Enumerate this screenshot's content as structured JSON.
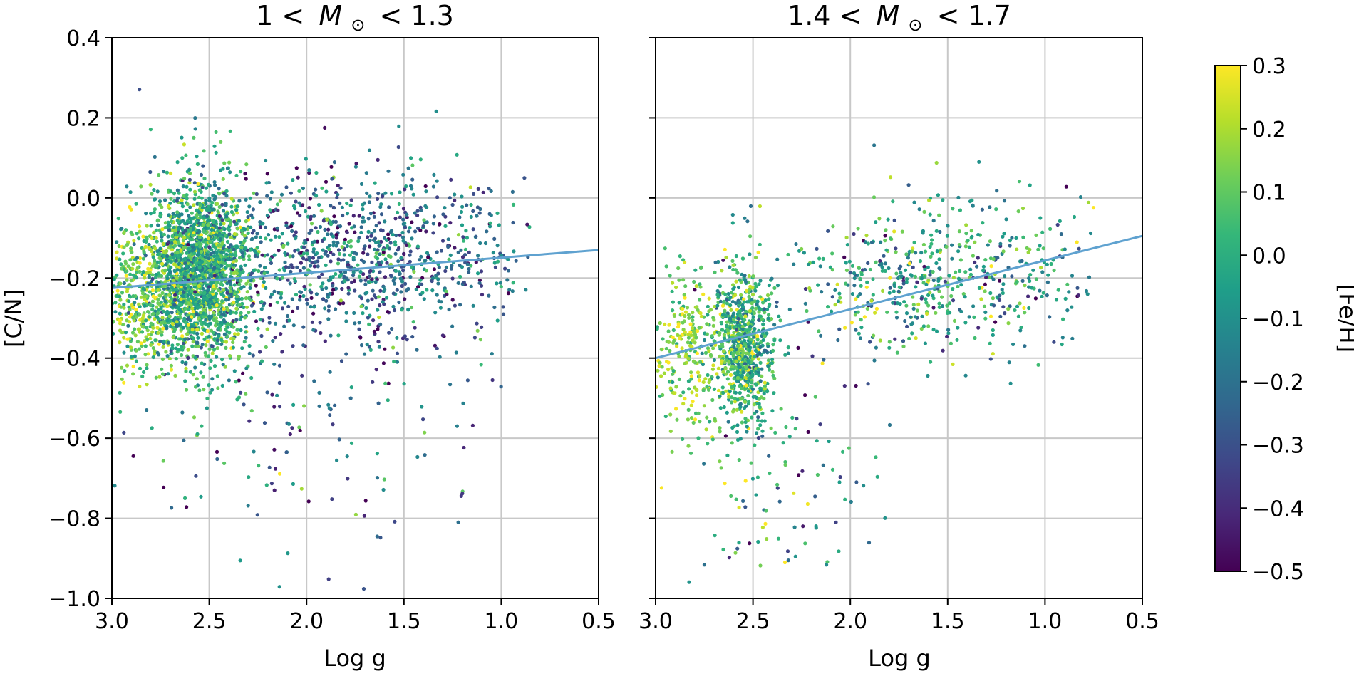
{
  "chart_data": [
    {
      "type": "scatter",
      "title": "1 < M⊙ < 1.3",
      "title_parts": {
        "left": "1 <",
        "var": "M",
        "sub": "⊙",
        "right": "< 1.3"
      },
      "xlabel": "Log g",
      "ylabel": "[C/N]",
      "xlim": [
        3.0,
        0.5
      ],
      "ylim": [
        -1.0,
        0.4
      ],
      "x_ticks": [
        "3.0",
        "2.5",
        "2.0",
        "1.5",
        "1.0",
        "0.5"
      ],
      "y_ticks": [
        "0.4",
        "0.2",
        "0.0",
        "−0.2",
        "−0.4",
        "−0.6",
        "−0.8",
        "−1.0"
      ],
      "grid": true,
      "fit_line": {
        "x": [
          3.0,
          0.5
        ],
        "y": [
          -0.225,
          -0.13
        ],
        "color": "#5fa2d0"
      },
      "points": {
        "count": 3600,
        "seed": 11,
        "clusters": [
          {
            "x_mean": 2.55,
            "x_sd": 0.13,
            "y_mean": -0.19,
            "y_sd": 0.11,
            "weight": 0.55,
            "fe_mean": 0.0,
            "fe_sd": 0.14
          },
          {
            "x_mean": 2.85,
            "x_sd": 0.12,
            "y_mean": -0.26,
            "y_sd": 0.09,
            "weight": 0.12,
            "fe_mean": 0.12,
            "fe_sd": 0.12
          },
          {
            "x_mean": 1.75,
            "x_sd": 0.45,
            "y_mean": -0.14,
            "y_sd": 0.11,
            "weight": 0.28,
            "fe_mean": -0.2,
            "fe_sd": 0.17
          },
          {
            "x_mean": 2.0,
            "x_sd": 0.5,
            "y_mean": -0.5,
            "y_sd": 0.22,
            "weight": 0.05,
            "fe_mean": -0.25,
            "fe_sd": 0.2
          }
        ],
        "x_range": [
          3.0,
          0.85
        ],
        "y_range": [
          -0.98,
          0.32
        ]
      }
    },
    {
      "type": "scatter",
      "title": "1.4 < M⊙ < 1.7",
      "title_parts": {
        "left": "1.4 <",
        "var": "M",
        "sub": "⊙",
        "right": "< 1.7"
      },
      "xlabel": "Log g",
      "ylabel": "",
      "xlim": [
        3.0,
        0.5
      ],
      "ylim": [
        -1.0,
        0.4
      ],
      "x_ticks": [
        "3.0",
        "2.5",
        "2.0",
        "1.5",
        "1.0",
        "0.5"
      ],
      "y_ticks": [],
      "grid": true,
      "fit_line": {
        "x": [
          3.0,
          0.5
        ],
        "y": [
          -0.4,
          -0.095
        ],
        "color": "#5fa2d0"
      },
      "points": {
        "count": 1700,
        "seed": 29,
        "clusters": [
          {
            "x_mean": 2.55,
            "x_sd": 0.08,
            "y_mean": -0.37,
            "y_sd": 0.1,
            "weight": 0.45,
            "fe_mean": 0.02,
            "fe_sd": 0.13
          },
          {
            "x_mean": 2.85,
            "x_sd": 0.1,
            "y_mean": -0.38,
            "y_sd": 0.1,
            "weight": 0.15,
            "fe_mean": 0.15,
            "fe_sd": 0.1
          },
          {
            "x_mean": 1.55,
            "x_sd": 0.4,
            "y_mean": -0.2,
            "y_sd": 0.1,
            "weight": 0.34,
            "fe_mean": -0.05,
            "fe_sd": 0.18
          },
          {
            "x_mean": 2.4,
            "x_sd": 0.25,
            "y_mean": -0.7,
            "y_sd": 0.15,
            "weight": 0.06,
            "fe_mean": -0.05,
            "fe_sd": 0.2
          }
        ],
        "x_range": [
          3.0,
          0.75
        ],
        "y_range": [
          -0.99,
          0.14
        ]
      }
    }
  ],
  "colorbar": {
    "label": "[Fe/H]",
    "range": [
      -0.5,
      0.3
    ],
    "ticks": [
      "0.3",
      "0.2",
      "0.1",
      "0.0",
      "−0.1",
      "−0.2",
      "−0.3",
      "−0.4",
      "−0.5"
    ],
    "colormap": "viridis",
    "colors": [
      "#440154",
      "#482878",
      "#3e4989",
      "#31688e",
      "#26828e",
      "#1f9e89",
      "#35b779",
      "#6ece58",
      "#b5de2b",
      "#fde725"
    ]
  }
}
